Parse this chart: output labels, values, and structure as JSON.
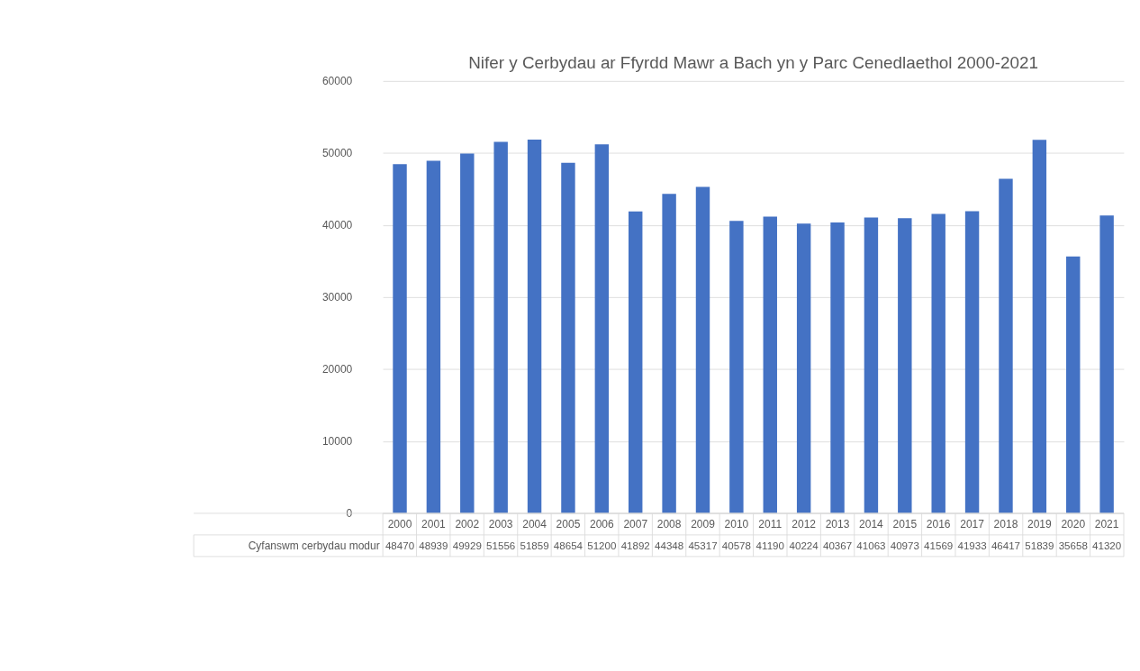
{
  "chart_data": {
    "type": "bar",
    "title": "Nifer y Cerbydau ar Ffyrdd Mawr a Bach yn y Parc Cenedlaethol 2000-2021",
    "categories": [
      "2000",
      "2001",
      "2002",
      "2003",
      "2004",
      "2005",
      "2006",
      "2007",
      "2008",
      "2009",
      "2010",
      "2011",
      "2012",
      "2013",
      "2014",
      "2015",
      "2016",
      "2017",
      "2018",
      "2019",
      "2020",
      "2021"
    ],
    "series": [
      {
        "name": "Cyfanswm cerbydau modur",
        "color": "#4472c4",
        "values": [
          48470,
          48939,
          49929,
          51556,
          51859,
          48654,
          51200,
          41892,
          44348,
          45317,
          40578,
          41190,
          40224,
          40367,
          41063,
          40973,
          41569,
          41933,
          46417,
          51839,
          35658,
          41320
        ]
      }
    ],
    "ylim": [
      0,
      60000
    ],
    "yticks": [
      0,
      10000,
      20000,
      30000,
      40000,
      50000,
      60000
    ],
    "grid": "y",
    "data_labels": true
  }
}
